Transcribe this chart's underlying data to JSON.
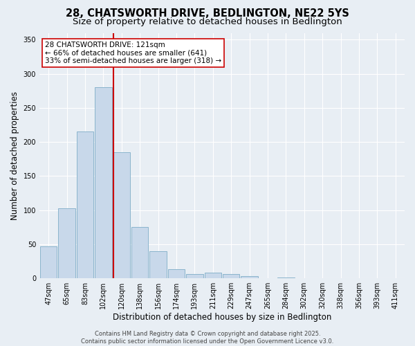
{
  "title_line1": "28, CHATSWORTH DRIVE, BEDLINGTON, NE22 5YS",
  "title_line2": "Size of property relative to detached houses in Bedlington",
  "xlabel": "Distribution of detached houses by size in Bedlington",
  "ylabel": "Number of detached properties",
  "categories": [
    "47sqm",
    "65sqm",
    "83sqm",
    "102sqm",
    "120sqm",
    "138sqm",
    "156sqm",
    "174sqm",
    "193sqm",
    "211sqm",
    "229sqm",
    "247sqm",
    "265sqm",
    "284sqm",
    "302sqm",
    "320sqm",
    "338sqm",
    "356sqm",
    "393sqm",
    "411sqm"
  ],
  "values": [
    47,
    103,
    215,
    280,
    185,
    75,
    40,
    13,
    6,
    8,
    6,
    3,
    0,
    1,
    0,
    0,
    0,
    0,
    0,
    0
  ],
  "bar_color": "#c8d8ea",
  "bar_edge_color": "#8ab4cc",
  "vline_color": "#cc0000",
  "vline_x": 3.55,
  "annotation_text": "28 CHATSWORTH DRIVE: 121sqm\n← 66% of detached houses are smaller (641)\n33% of semi-detached houses are larger (318) →",
  "annotation_box_color": "#ffffff",
  "annotation_box_edge_color": "#cc0000",
  "ylim": [
    0,
    360
  ],
  "yticks": [
    0,
    50,
    100,
    150,
    200,
    250,
    300,
    350
  ],
  "background_color": "#e8eef4",
  "plot_background_color": "#e8eef4",
  "grid_color": "#ffffff",
  "footer_text": "Contains HM Land Registry data © Crown copyright and database right 2025.\nContains public sector information licensed under the Open Government Licence v3.0.",
  "title_fontsize": 10.5,
  "subtitle_fontsize": 9.5,
  "tick_fontsize": 7,
  "ylabel_fontsize": 8.5,
  "xlabel_fontsize": 8.5,
  "annotation_fontsize": 7.5,
  "footer_fontsize": 6
}
